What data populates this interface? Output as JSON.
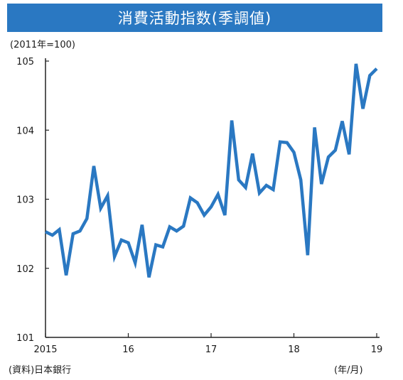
{
  "chart_data": {
    "type": "line",
    "title": "消費活動指数(季調値)",
    "unit_note": "(2011年=100)",
    "source_note": "(資料)日本銀行",
    "x_unit_note": "(年/月)",
    "yticks": [
      "101",
      "102",
      "103",
      "104",
      "105"
    ],
    "ylim": [
      101,
      105
    ],
    "xticks": [
      {
        "label": "2015",
        "x": "2015-01"
      },
      {
        "label": "16",
        "x": "2016-01"
      },
      {
        "label": "17",
        "x": "2017-01"
      },
      {
        "label": "18",
        "x": "2018-01"
      },
      {
        "label": "19",
        "x": "2019-01"
      }
    ],
    "grid": false,
    "line_color": "#2a78c2",
    "series": [
      {
        "x": [
          "2015-01",
          "2015-02",
          "2015-03",
          "2015-04",
          "2015-05",
          "2015-06",
          "2015-07",
          "2015-08",
          "2015-09",
          "2015-10",
          "2015-11",
          "2015-12",
          "2016-01",
          "2016-02",
          "2016-03",
          "2016-04",
          "2016-05",
          "2016-06",
          "2016-07",
          "2016-08",
          "2016-09",
          "2016-10",
          "2016-11",
          "2016-12",
          "2017-01",
          "2017-02",
          "2017-03",
          "2017-04",
          "2017-05",
          "2017-06",
          "2017-07",
          "2017-08",
          "2017-09",
          "2017-10",
          "2017-11",
          "2017-12",
          "2018-01",
          "2018-02",
          "2018-03",
          "2018-04",
          "2018-05",
          "2018-06",
          "2018-07",
          "2018-08",
          "2018-09",
          "2018-10",
          "2018-11",
          "2018-12",
          "2019-01"
        ],
        "values": [
          102.53,
          102.48,
          102.56,
          101.9,
          102.5,
          102.54,
          102.72,
          103.48,
          102.87,
          103.05,
          102.17,
          102.41,
          102.37,
          102.08,
          102.63,
          101.87,
          102.34,
          102.31,
          102.6,
          102.54,
          102.61,
          103.02,
          102.95,
          102.77,
          102.89,
          103.07,
          102.77,
          104.14,
          103.28,
          103.17,
          103.66,
          103.09,
          103.2,
          103.14,
          103.83,
          103.82,
          103.68,
          103.28,
          102.19,
          104.04,
          103.22,
          103.61,
          103.71,
          104.13,
          103.65,
          104.96,
          104.31,
          104.79,
          104.89
        ]
      }
    ]
  }
}
